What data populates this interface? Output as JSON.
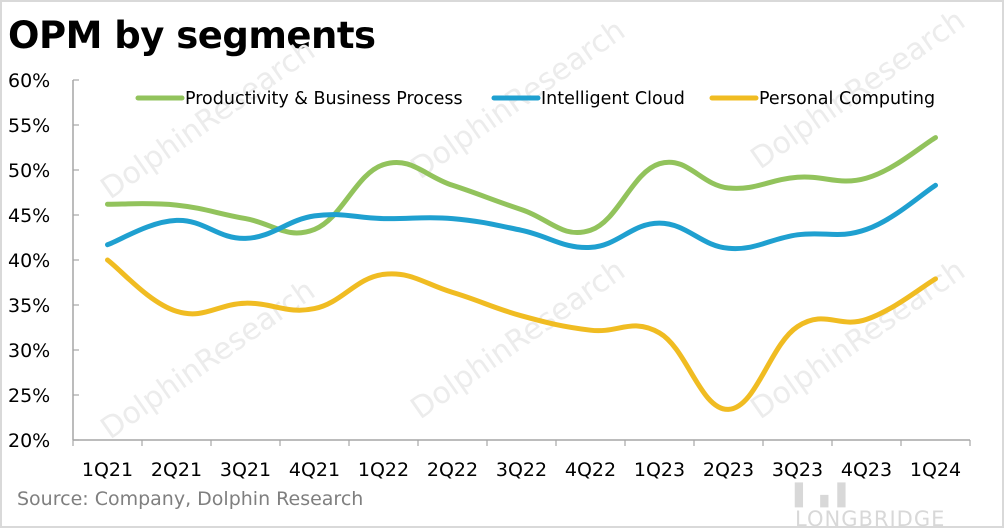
{
  "title": "OPM by segments",
  "source": "Source:  Company, Dolphin Research",
  "watermark": {
    "brand": "LONGBRIDGE",
    "text": "DolphinResearch"
  },
  "chart_data": {
    "type": "line",
    "title": "OPM by segments",
    "xlabel": "",
    "ylabel": "",
    "ylim": [
      20,
      60
    ],
    "yticks": [
      20,
      25,
      30,
      35,
      40,
      45,
      50,
      55,
      60
    ],
    "ytick_labels": [
      "20%",
      "25%",
      "30%",
      "35%",
      "40%",
      "45%",
      "50%",
      "55%",
      "60%"
    ],
    "categories": [
      "1Q21",
      "2Q21",
      "3Q21",
      "4Q21",
      "1Q22",
      "2Q22",
      "3Q22",
      "4Q22",
      "1Q23",
      "2Q23",
      "3Q23",
      "4Q23",
      "1Q24"
    ],
    "grid": false,
    "smooth": true,
    "legend_position": "top",
    "series": [
      {
        "name": "Productivity & Business Process",
        "color": "#92c35c",
        "values": [
          46.2,
          46.1,
          44.6,
          43.4,
          50.6,
          48.3,
          45.6,
          43.3,
          50.7,
          48.0,
          49.2,
          49.1,
          53.6
        ]
      },
      {
        "name": "Intelligent Cloud",
        "color": "#1fa0d0",
        "values": [
          41.7,
          44.4,
          42.4,
          44.9,
          44.6,
          44.6,
          43.3,
          41.4,
          44.1,
          41.3,
          42.8,
          43.4,
          48.3
        ]
      },
      {
        "name": "Personal Computing",
        "color": "#f0bc22",
        "values": [
          40.0,
          34.3,
          35.2,
          34.6,
          38.4,
          36.4,
          33.8,
          32.2,
          31.9,
          23.4,
          32.6,
          33.4,
          37.9
        ]
      }
    ]
  }
}
